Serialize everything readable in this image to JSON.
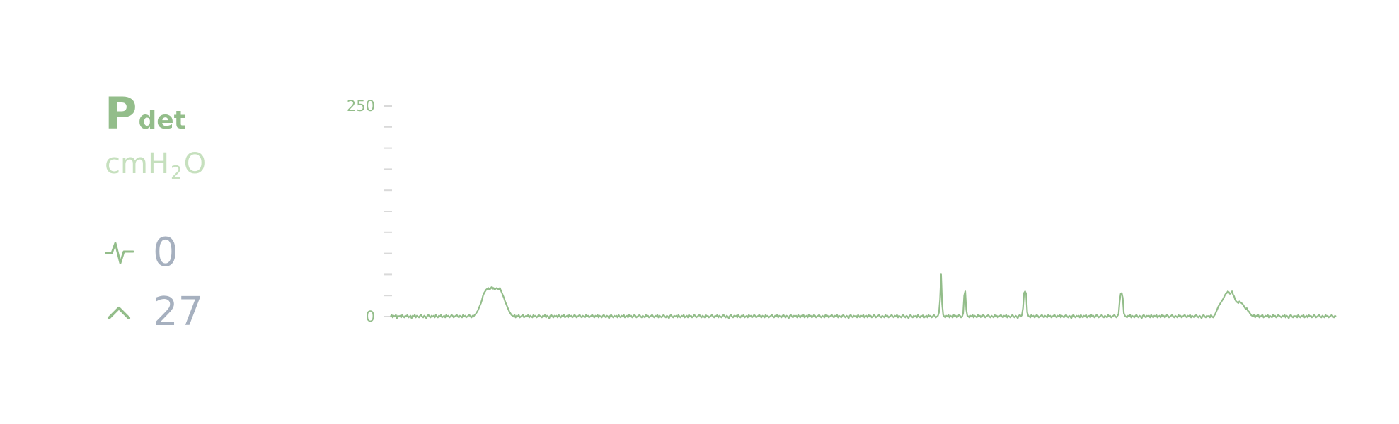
{
  "channel": {
    "name": "P",
    "sub": "det",
    "unit_prefix": "cmH",
    "unit_sub": "2",
    "unit_suffix": "O",
    "color": "#93bd8a",
    "unit_color": "#c6e0be"
  },
  "stats": [
    {
      "icon": "pulse-icon",
      "value": "0"
    },
    {
      "icon": "chevron-up-icon",
      "value": "27"
    }
  ],
  "chart_data": {
    "type": "line",
    "title": "",
    "xlabel": "",
    "ylabel": "",
    "ylim": [
      0,
      250
    ],
    "ytick_labels": [
      "250",
      "0"
    ],
    "minor_tick_step": 25,
    "line_color": "#93bd8a",
    "grid": false,
    "series": [
      {
        "values": [
          0,
          2,
          -1,
          1,
          0,
          2,
          -2,
          1,
          0,
          1,
          -1,
          2,
          0,
          -1,
          1,
          0,
          2,
          -1,
          0,
          1,
          -2,
          1,
          0,
          2,
          -1,
          1,
          0,
          -1,
          1,
          2,
          0,
          -1,
          1,
          0,
          -2,
          1,
          2,
          0,
          -1,
          1,
          0,
          1,
          -1,
          2,
          0,
          -1,
          1,
          0,
          2,
          -1,
          0,
          1,
          -1,
          2,
          0,
          1,
          -1,
          0,
          2,
          1,
          -1,
          0,
          1,
          2,
          0,
          -1,
          1,
          0,
          -1,
          2,
          0,
          1,
          -1,
          0,
          1,
          2,
          0,
          -1,
          1,
          0,
          2,
          3,
          5,
          7,
          10,
          13,
          16,
          20,
          25,
          28,
          30,
          32,
          33,
          34,
          32,
          33,
          35,
          33,
          34,
          32,
          33,
          34,
          33,
          32,
          34,
          31,
          28,
          25,
          22,
          18,
          15,
          12,
          9,
          6,
          4,
          2,
          1,
          0,
          2,
          -1,
          1,
          0,
          2,
          -1,
          0,
          1,
          2,
          -1,
          0,
          1,
          0,
          2,
          -1,
          1,
          0,
          -1,
          2,
          0,
          1,
          -1,
          0,
          2,
          1,
          0,
          -1,
          1,
          0,
          2,
          -1,
          1,
          0,
          -2,
          1,
          2,
          0,
          -1,
          1,
          0,
          1,
          -1,
          2,
          0,
          -1,
          1,
          0,
          2,
          -1,
          0,
          1,
          -1,
          2,
          0,
          1,
          -1,
          0,
          2,
          1,
          -1,
          0,
          1,
          2,
          0,
          -1,
          1,
          0,
          -1,
          2,
          0,
          1,
          -1,
          0,
          1,
          2,
          0,
          -1,
          1,
          0,
          2,
          -1,
          1,
          0,
          -1,
          1,
          2,
          0,
          -1,
          1,
          0,
          -2,
          1,
          2,
          0,
          -1,
          1,
          0,
          1,
          -1,
          2,
          0,
          -1,
          1,
          0,
          2,
          -1,
          0,
          1,
          -1,
          2,
          0,
          1,
          -1,
          0,
          2,
          1,
          -1,
          0,
          1,
          2,
          0,
          -1,
          1,
          0,
          -1,
          2,
          0,
          1,
          -1,
          0,
          1,
          2,
          0,
          -1,
          1,
          0,
          2,
          -1,
          1,
          0,
          -1,
          1,
          2,
          0,
          -1,
          1,
          0,
          -2,
          1,
          2,
          0,
          -1,
          1,
          0,
          1,
          -1,
          2,
          0,
          -1,
          1,
          0,
          2,
          -1,
          0,
          1,
          -1,
          2,
          0,
          1,
          -1,
          0,
          2,
          1,
          -1,
          0,
          1,
          2,
          0,
          -1,
          1,
          0,
          -1,
          2,
          0,
          1,
          -1,
          0,
          1,
          2,
          0,
          -1,
          1,
          0,
          2,
          -1,
          1,
          0,
          -1,
          1,
          2,
          0,
          -1,
          1,
          0,
          -2,
          1,
          2,
          0,
          -1,
          1,
          0,
          1,
          -1,
          2,
          0,
          -1,
          1,
          0,
          2,
          -1,
          0,
          1,
          -1,
          2,
          0,
          1,
          -1,
          0,
          2,
          1,
          -1,
          0,
          1,
          2,
          0,
          -1,
          1,
          0,
          -1,
          2,
          0,
          1,
          -1,
          0,
          1,
          2,
          0,
          -1,
          1,
          0,
          2,
          -1,
          1,
          0,
          -1,
          1,
          2,
          0,
          -1,
          1,
          0,
          -2,
          1,
          2,
          0,
          -1,
          1,
          0,
          1,
          -1,
          2,
          0,
          -1,
          1,
          0,
          2,
          -1,
          0,
          1,
          -1,
          2,
          0,
          1,
          -1,
          0,
          2,
          1,
          -1,
          0,
          1,
          2,
          0,
          -1,
          1,
          0,
          -1,
          2,
          0,
          1,
          -1,
          0,
          1,
          2,
          0,
          -1,
          1,
          0,
          2,
          -1,
          1,
          0,
          -1,
          1,
          2,
          0,
          -1,
          1,
          0,
          -2,
          1,
          2,
          0,
          -1,
          1,
          0,
          1,
          -1,
          2,
          0,
          -1,
          1,
          0,
          2,
          -1,
          0,
          1,
          -1,
          2,
          0,
          1,
          -1,
          0,
          2,
          1,
          -1,
          0,
          1,
          2,
          0,
          -1,
          1,
          0,
          -1,
          2,
          0,
          1,
          -1,
          0,
          1,
          2,
          0,
          -1,
          1,
          0,
          2,
          -1,
          1,
          0,
          -1,
          1,
          2,
          0,
          -1,
          1,
          0,
          -2,
          1,
          2,
          0,
          -1,
          1,
          0,
          1,
          -1,
          2,
          0,
          -1,
          1,
          0,
          2,
          -1,
          0,
          1,
          -1,
          2,
          0,
          1,
          -1,
          0,
          2,
          1,
          -1,
          0,
          1,
          5,
          20,
          50,
          15,
          2,
          0,
          -1,
          1,
          0,
          2,
          -1,
          1,
          0,
          -1,
          2,
          0,
          1,
          -1,
          0,
          2,
          1,
          -1,
          0,
          4,
          25,
          30,
          8,
          1,
          0,
          -1,
          1,
          0,
          2,
          -1,
          1,
          0,
          -1,
          2,
          0,
          1,
          -1,
          0,
          2,
          1,
          -1,
          0,
          1,
          2,
          0,
          -1,
          1,
          0,
          -1,
          2,
          0,
          1,
          -1,
          0,
          1,
          2,
          0,
          -1,
          1,
          0,
          2,
          -1,
          1,
          0,
          -1,
          1,
          2,
          0,
          -1,
          1,
          0,
          -2,
          1,
          2,
          0,
          2,
          10,
          28,
          30,
          27,
          5,
          1,
          0,
          -1,
          2,
          0,
          1,
          -1,
          0,
          2,
          1,
          -1,
          0,
          1,
          2,
          0,
          -1,
          1,
          0,
          -1,
          2,
          0,
          1,
          -1,
          0,
          1,
          2,
          0,
          -1,
          1,
          0,
          2,
          -1,
          1,
          0,
          -1,
          1,
          2,
          0,
          -1,
          1,
          0,
          -2,
          1,
          2,
          0,
          -1,
          1,
          0,
          1,
          -1,
          2,
          0,
          -1,
          1,
          0,
          2,
          -1,
          0,
          1,
          -1,
          2,
          0,
          1,
          -1,
          0,
          2,
          1,
          -1,
          0,
          1,
          2,
          0,
          -1,
          1,
          0,
          -1,
          2,
          0,
          1,
          -1,
          0,
          1,
          2,
          0,
          -1,
          1,
          3,
          18,
          27,
          28,
          22,
          4,
          1,
          0,
          -1,
          1,
          0,
          2,
          -1,
          1,
          0,
          -1,
          1,
          2,
          0,
          -1,
          1,
          0,
          -2,
          1,
          2,
          0,
          -1,
          1,
          0,
          1,
          -1,
          2,
          0,
          -1,
          1,
          0,
          2,
          -1,
          0,
          1,
          -1,
          2,
          0,
          1,
          -1,
          0,
          2,
          1,
          -1,
          0,
          1,
          2,
          0,
          -1,
          1,
          0,
          -1,
          2,
          0,
          1,
          -1,
          0,
          1,
          2,
          0,
          -1,
          1,
          0,
          2,
          -1,
          1,
          0,
          -1,
          1,
          2,
          0,
          -1,
          1,
          0,
          -2,
          1,
          2,
          0,
          -1,
          1,
          0,
          1,
          -1,
          2,
          0,
          -1,
          1,
          3,
          6,
          9,
          12,
          14,
          16,
          18,
          20,
          22,
          25,
          27,
          28,
          30,
          29,
          27,
          28,
          30,
          26,
          24,
          20,
          18,
          17,
          16,
          18,
          17,
          16,
          15,
          13,
          11,
          9,
          10,
          7,
          6,
          4,
          2,
          1,
          0,
          2,
          -1,
          1,
          0,
          2,
          -1,
          0,
          1,
          2,
          -1,
          0,
          1,
          0,
          2,
          -1,
          1,
          0,
          -1,
          2,
          0,
          1,
          -1,
          0,
          2,
          1,
          0,
          -1,
          1,
          0,
          2,
          -1,
          1,
          0,
          -2,
          1,
          2,
          0,
          -1,
          1,
          0,
          1,
          -1,
          2,
          0,
          -1,
          1,
          0,
          2,
          -1,
          0,
          1,
          -1,
          2,
          0,
          1,
          -1,
          0,
          2,
          1,
          -1,
          0,
          1,
          2,
          0,
          -1,
          1,
          0,
          -1,
          2,
          0,
          1,
          -1,
          0,
          1,
          2,
          0,
          -1,
          1,
          0
        ]
      }
    ]
  }
}
